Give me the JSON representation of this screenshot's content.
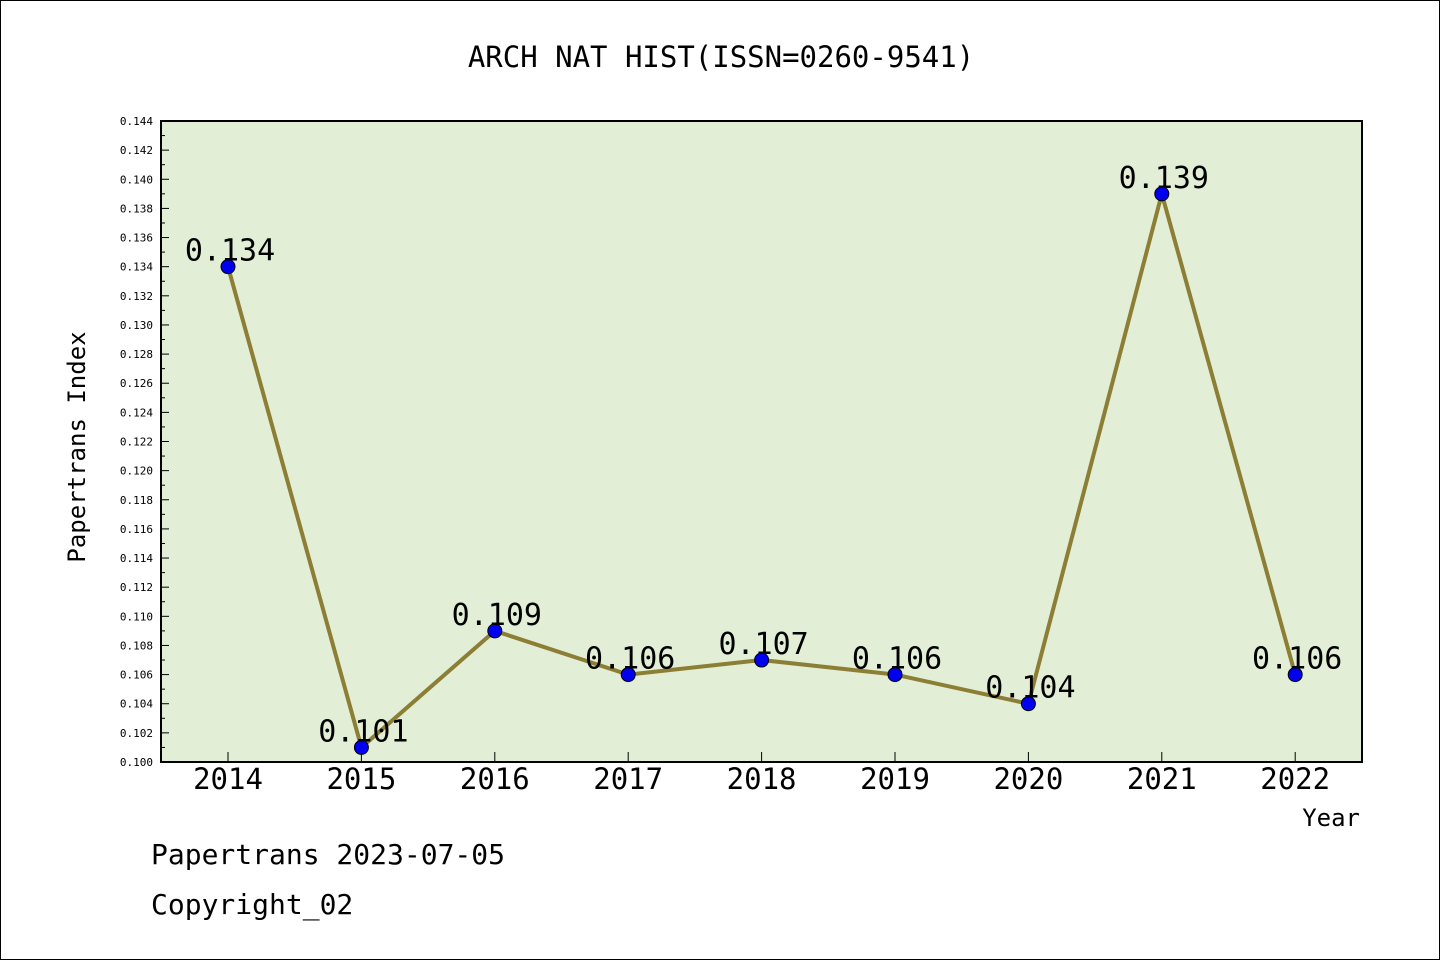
{
  "chart_data": {
    "type": "line",
    "title": "ARCH NAT HIST(ISSN=0260-9541)",
    "xlabel": "Year",
    "ylabel": "Papertrans Index",
    "categories": [
      "2014",
      "2015",
      "2016",
      "2017",
      "2018",
      "2019",
      "2020",
      "2021",
      "2022"
    ],
    "series": [
      {
        "values": [
          0.134,
          0.101,
          0.109,
          0.106,
          0.107,
          0.106,
          0.104,
          0.139,
          0.106
        ],
        "labels": [
          "0.134",
          "0.101",
          "0.109",
          "0.106",
          "0.107",
          "0.106",
          "0.104",
          "0.139",
          "0.106"
        ]
      }
    ],
    "ylim": [
      0.1,
      0.144
    ],
    "yticks": [
      "0.100",
      "0.102",
      "0.104",
      "0.106",
      "0.108",
      "0.110",
      "0.112",
      "0.114",
      "0.116",
      "0.118",
      "0.120",
      "0.122",
      "0.124",
      "0.126",
      "0.128",
      "0.130",
      "0.132",
      "0.134",
      "0.136",
      "0.138",
      "0.140",
      "0.142",
      "0.144"
    ],
    "grid": false,
    "colors": {
      "plot_background": "#e2efd6",
      "line": "#8c7e34",
      "marker": "#0000ee"
    }
  },
  "footer": {
    "line1": "Papertrans 2023-07-05",
    "line2": "Copyright_02"
  }
}
